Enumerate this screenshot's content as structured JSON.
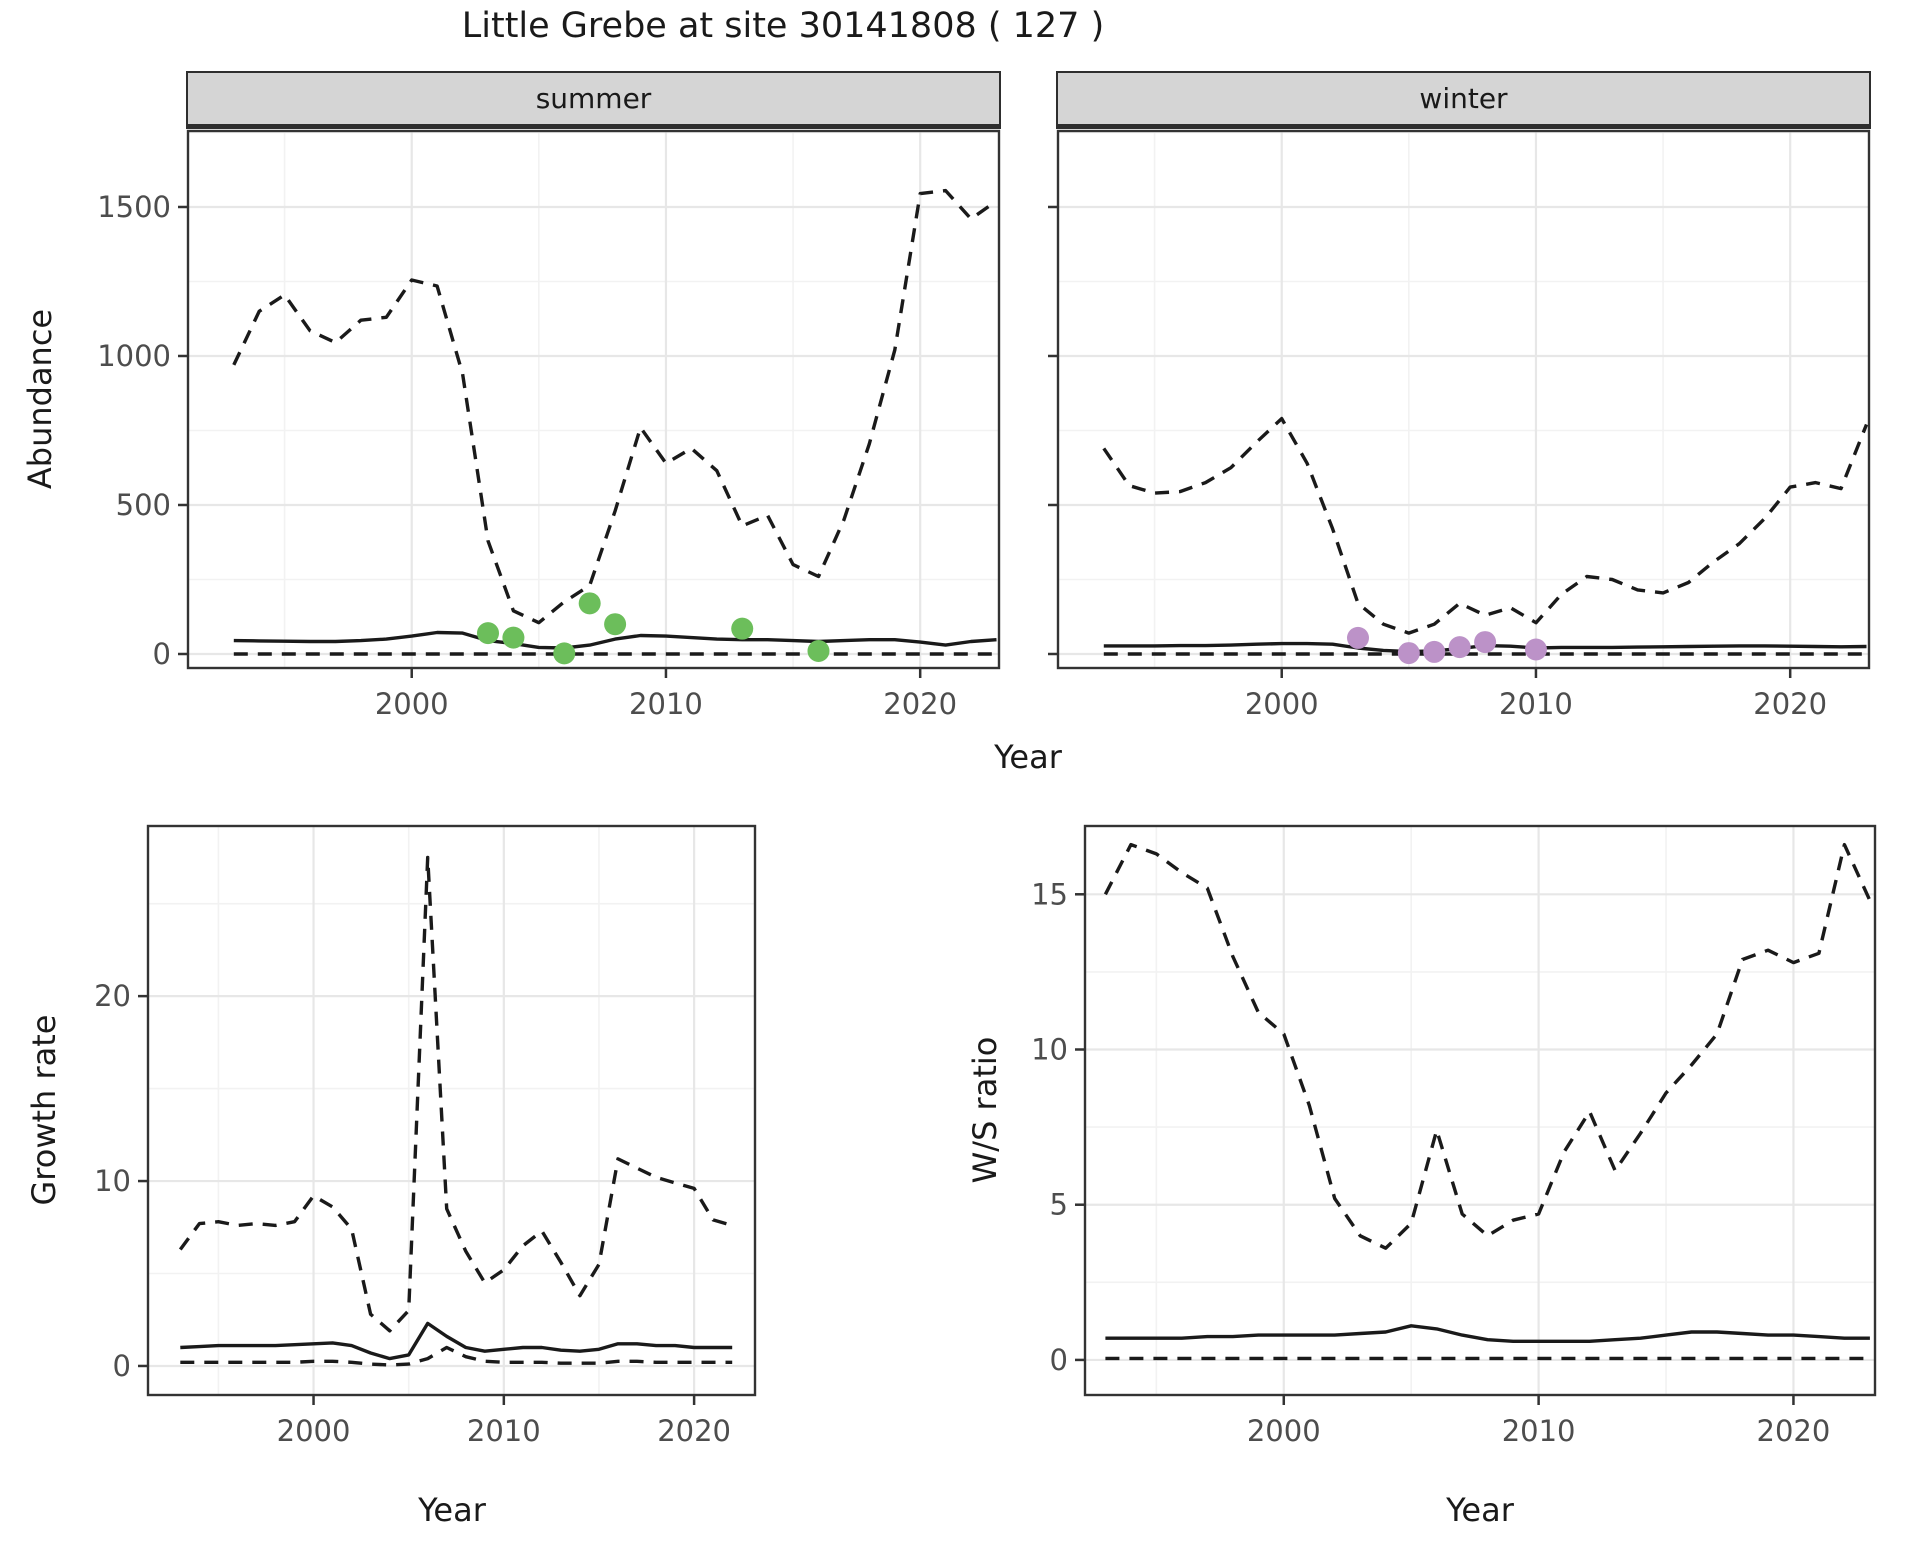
{
  "title": "Little Grebe at site 30141808 ( 127 )",
  "labels": {
    "facet_summer": "summer",
    "facet_winter": "winter",
    "y_abundance": "Abundance",
    "y_growth": "Growth rate",
    "y_ws": "W/S ratio",
    "x_year": "Year"
  },
  "colors": {
    "summer_points": "#6CBE5B",
    "winter_points": "#BC92C8",
    "line": "#1a1a1a",
    "strip_bg": "#d5d5d5",
    "grid_major": "#e7e7e7",
    "grid_minor": "#f2f2f2",
    "panel_border": "#333333",
    "tick_text": "#4d4d4d"
  },
  "chart_data": [
    {
      "id": "abundance_summer",
      "type": "line",
      "facet": "summer",
      "xlabel": "Year",
      "ylabel": "Abundance",
      "grid": true,
      "legend": "none",
      "xlim": [
        1991.2,
        2023.1
      ],
      "ylim": [
        -47,
        1755
      ],
      "xticks": [
        2000,
        2010,
        2020
      ],
      "xminor": [
        1995,
        2005,
        2015
      ],
      "yticks": [
        0,
        500,
        1000,
        1500
      ],
      "yminor": [
        250,
        750,
        1250,
        1750
      ],
      "x": [
        1993,
        1994,
        1995,
        1996,
        1997,
        1998,
        1999,
        2000,
        2001,
        2002,
        2003,
        2004,
        2005,
        2006,
        2007,
        2008,
        2009,
        2010,
        2011,
        2012,
        2013,
        2014,
        2015,
        2016,
        2017,
        2018,
        2019,
        2020,
        2021,
        2022,
        2023
      ],
      "series": [
        {
          "name": "upper_95ci",
          "style": "dashed",
          "values": [
            970,
            1150,
            1205,
            1085,
            1045,
            1120,
            1130,
            1255,
            1235,
            940,
            380,
            145,
            105,
            175,
            230,
            480,
            760,
            640,
            690,
            615,
            430,
            465,
            300,
            260,
            450,
            705,
            1020,
            1545,
            1555,
            1460,
            1520
          ]
        },
        {
          "name": "estimate",
          "style": "solid",
          "values": [
            45,
            44,
            43,
            42,
            42,
            45,
            50,
            60,
            72,
            70,
            45,
            35,
            22,
            20,
            30,
            50,
            62,
            60,
            55,
            50,
            48,
            48,
            45,
            42,
            45,
            48,
            48,
            40,
            30,
            42,
            48
          ]
        },
        {
          "name": "lower_95ci",
          "style": "dashed",
          "values": [
            0,
            0,
            0,
            0,
            0,
            0,
            0,
            0,
            0,
            0,
            0,
            0,
            0,
            0,
            0,
            0,
            0,
            0,
            0,
            0,
            0,
            0,
            0,
            0,
            0,
            0,
            0,
            0,
            0,
            0,
            0
          ]
        }
      ],
      "points": {
        "color_key": "summer_points",
        "data": [
          [
            2003,
            70
          ],
          [
            2004,
            55
          ],
          [
            2006,
            2
          ],
          [
            2007,
            170
          ],
          [
            2008,
            100
          ],
          [
            2013,
            85
          ],
          [
            2016,
            10
          ]
        ]
      }
    },
    {
      "id": "abundance_winter",
      "type": "line",
      "facet": "winter",
      "xlabel": "Year",
      "ylabel": "Abundance",
      "grid": true,
      "legend": "none",
      "xlim": [
        1991.2,
        2023.1
      ],
      "ylim": [
        -47,
        1755
      ],
      "xticks": [
        2000,
        2010,
        2020
      ],
      "xminor": [
        1995,
        2005,
        2015
      ],
      "yticks": [
        0,
        500,
        1000,
        1500
      ],
      "yminor": [
        250,
        750,
        1250,
        1750
      ],
      "ytick_labels_hidden": true,
      "x": [
        1993,
        1994,
        1995,
        1996,
        1997,
        1998,
        1999,
        2000,
        2001,
        2002,
        2003,
        2004,
        2005,
        2006,
        2007,
        2008,
        2009,
        2010,
        2011,
        2012,
        2013,
        2014,
        2015,
        2016,
        2017,
        2018,
        2019,
        2020,
        2021,
        2022,
        2023
      ],
      "series": [
        {
          "name": "upper_95ci",
          "style": "dashed",
          "values": [
            690,
            565,
            540,
            545,
            575,
            625,
            710,
            790,
            640,
            420,
            170,
            100,
            70,
            100,
            170,
            130,
            155,
            105,
            200,
            260,
            250,
            215,
            205,
            240,
            310,
            370,
            455,
            560,
            575,
            555,
            770
          ]
        },
        {
          "name": "estimate",
          "style": "solid",
          "values": [
            27,
            27,
            27,
            28,
            28,
            30,
            33,
            35,
            35,
            33,
            20,
            12,
            8,
            10,
            18,
            28,
            26,
            20,
            22,
            22,
            22,
            23,
            24,
            25,
            26,
            27,
            27,
            26,
            25,
            24,
            25
          ]
        },
        {
          "name": "lower_95ci",
          "style": "dashed",
          "values": [
            0,
            0,
            0,
            0,
            0,
            0,
            0,
            0,
            0,
            0,
            0,
            0,
            0,
            0,
            0,
            0,
            0,
            0,
            0,
            0,
            0,
            0,
            0,
            0,
            0,
            0,
            0,
            0,
            0,
            0,
            0
          ]
        }
      ],
      "points": {
        "color_key": "winter_points",
        "data": [
          [
            2003,
            54
          ],
          [
            2005,
            3
          ],
          [
            2006,
            7
          ],
          [
            2007,
            23
          ],
          [
            2008,
            40
          ],
          [
            2010,
            15
          ]
        ]
      }
    },
    {
      "id": "growth_rate",
      "type": "line",
      "facet": null,
      "xlabel": "Year",
      "ylabel": "Growth rate",
      "grid": true,
      "legend": "none",
      "xlim": [
        1991.3,
        2023.2
      ],
      "ylim": [
        -1.57,
        29.2
      ],
      "xticks": [
        2000,
        2010,
        2020
      ],
      "xminor": [
        1995,
        2005,
        2015
      ],
      "yticks": [
        0,
        10,
        20
      ],
      "yminor": [
        5,
        15,
        25
      ],
      "x": [
        1993,
        1994,
        1995,
        1996,
        1997,
        1998,
        1999,
        2000,
        2001,
        2002,
        2003,
        2004,
        2005,
        2006,
        2007,
        2008,
        2009,
        2010,
        2011,
        2012,
        2013,
        2014,
        2015,
        2016,
        2017,
        2018,
        2019,
        2020,
        2021,
        2022
      ],
      "series": [
        {
          "name": "upper_95ci",
          "style": "dashed",
          "values": [
            6.3,
            7.7,
            7.8,
            7.6,
            7.7,
            7.6,
            7.8,
            9.2,
            8.6,
            7.4,
            2.8,
            1.9,
            3.0,
            27.5,
            8.5,
            6.2,
            4.5,
            5.2,
            6.5,
            7.3,
            5.6,
            3.8,
            5.5,
            11.2,
            10.7,
            10.2,
            9.9,
            9.6,
            7.9,
            7.6
          ]
        },
        {
          "name": "estimate",
          "style": "solid",
          "values": [
            1.0,
            1.05,
            1.1,
            1.1,
            1.1,
            1.1,
            1.15,
            1.2,
            1.25,
            1.1,
            0.7,
            0.4,
            0.6,
            2.3,
            1.6,
            1.0,
            0.8,
            0.9,
            1.0,
            1.0,
            0.85,
            0.8,
            0.9,
            1.2,
            1.2,
            1.1,
            1.1,
            1.0,
            1.0,
            1.0
          ]
        },
        {
          "name": "lower_95ci",
          "style": "dashed",
          "values": [
            0.2,
            0.2,
            0.2,
            0.2,
            0.2,
            0.2,
            0.2,
            0.25,
            0.25,
            0.2,
            0.1,
            0.05,
            0.1,
            0.4,
            1.0,
            0.5,
            0.25,
            0.2,
            0.2,
            0.2,
            0.15,
            0.15,
            0.15,
            0.25,
            0.25,
            0.2,
            0.2,
            0.2,
            0.2,
            0.2
          ]
        }
      ],
      "points": null
    },
    {
      "id": "ws_ratio",
      "type": "line",
      "facet": null,
      "xlabel": "Year",
      "ylabel": "W/S ratio",
      "grid": true,
      "legend": "none",
      "xlim": [
        1992.2,
        2023.2
      ],
      "ylim": [
        -1.13,
        17.2
      ],
      "xticks": [
        2000,
        2010,
        2020
      ],
      "xminor": [
        1995,
        2005,
        2015
      ],
      "yticks": [
        0,
        5,
        10,
        15
      ],
      "yminor": [
        2.5,
        7.5,
        12.5
      ],
      "x": [
        1993,
        1994,
        1995,
        1996,
        1997,
        1998,
        1999,
        2000,
        2001,
        2002,
        2003,
        2004,
        2005,
        2006,
        2007,
        2008,
        2009,
        2010,
        2011,
        2012,
        2013,
        2014,
        2015,
        2016,
        2017,
        2018,
        2019,
        2020,
        2021,
        2022,
        2023
      ],
      "series": [
        {
          "name": "upper_95ci",
          "style": "dashed",
          "values": [
            15.0,
            16.6,
            16.3,
            15.7,
            15.2,
            13.0,
            11.2,
            10.5,
            8.2,
            5.2,
            4.0,
            3.6,
            4.4,
            7.4,
            4.7,
            4.0,
            4.5,
            4.7,
            6.7,
            8.0,
            6.1,
            7.3,
            8.6,
            9.5,
            10.5,
            12.9,
            13.2,
            12.8,
            13.1,
            16.6,
            14.8
          ]
        },
        {
          "name": "estimate",
          "style": "solid",
          "values": [
            0.7,
            0.7,
            0.7,
            0.7,
            0.75,
            0.75,
            0.8,
            0.8,
            0.8,
            0.8,
            0.85,
            0.9,
            1.1,
            1.0,
            0.8,
            0.65,
            0.6,
            0.6,
            0.6,
            0.6,
            0.65,
            0.7,
            0.8,
            0.9,
            0.9,
            0.85,
            0.8,
            0.8,
            0.75,
            0.7,
            0.7
          ]
        },
        {
          "name": "lower_95ci",
          "style": "dashed",
          "values": [
            0.05,
            0.05,
            0.05,
            0.05,
            0.05,
            0.05,
            0.05,
            0.05,
            0.05,
            0.05,
            0.05,
            0.05,
            0.05,
            0.05,
            0.05,
            0.05,
            0.05,
            0.05,
            0.05,
            0.05,
            0.05,
            0.05,
            0.05,
            0.05,
            0.05,
            0.05,
            0.05,
            0.05,
            0.05,
            0.05,
            0.05
          ]
        }
      ],
      "points": null
    }
  ]
}
